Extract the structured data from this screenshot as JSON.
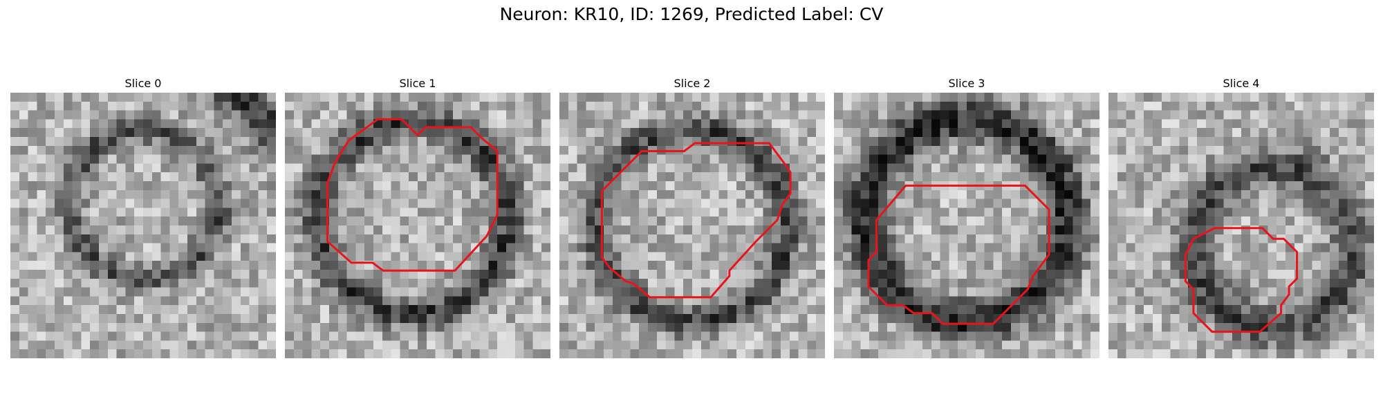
{
  "figure": {
    "title": "Neuron: KR10, ID: 1269, Predicted Label: CV",
    "contour_color": "#e8141a"
  },
  "slices": [
    {
      "title": "Slice 0",
      "contour": []
    },
    {
      "title": "Slice 1",
      "contour": [
        [
          0.35,
          0.1
        ],
        [
          0.44,
          0.1
        ],
        [
          0.5,
          0.16
        ],
        [
          0.53,
          0.13
        ],
        [
          0.7,
          0.13
        ],
        [
          0.74,
          0.17
        ],
        [
          0.8,
          0.22
        ],
        [
          0.8,
          0.46
        ],
        [
          0.76,
          0.54
        ],
        [
          0.64,
          0.67
        ],
        [
          0.37,
          0.67
        ],
        [
          0.33,
          0.64
        ],
        [
          0.25,
          0.64
        ],
        [
          0.16,
          0.56
        ],
        [
          0.16,
          0.34
        ],
        [
          0.19,
          0.26
        ],
        [
          0.24,
          0.18
        ]
      ]
    },
    {
      "title": "Slice 2",
      "contour": [
        [
          0.31,
          0.22
        ],
        [
          0.47,
          0.22
        ],
        [
          0.51,
          0.19
        ],
        [
          0.79,
          0.19
        ],
        [
          0.85,
          0.27
        ],
        [
          0.87,
          0.3
        ],
        [
          0.87,
          0.38
        ],
        [
          0.84,
          0.42
        ],
        [
          0.82,
          0.48
        ],
        [
          0.74,
          0.56
        ],
        [
          0.64,
          0.67
        ],
        [
          0.64,
          0.69
        ],
        [
          0.57,
          0.77
        ],
        [
          0.34,
          0.77
        ],
        [
          0.28,
          0.72
        ],
        [
          0.25,
          0.71
        ],
        [
          0.19,
          0.66
        ],
        [
          0.16,
          0.62
        ],
        [
          0.16,
          0.37
        ]
      ]
    },
    {
      "title": "Slice 3",
      "contour": [
        [
          0.27,
          0.35
        ],
        [
          0.72,
          0.35
        ],
        [
          0.81,
          0.44
        ],
        [
          0.81,
          0.61
        ],
        [
          0.75,
          0.69
        ],
        [
          0.73,
          0.74
        ],
        [
          0.6,
          0.87
        ],
        [
          0.41,
          0.87
        ],
        [
          0.37,
          0.83
        ],
        [
          0.3,
          0.83
        ],
        [
          0.26,
          0.8
        ],
        [
          0.2,
          0.8
        ],
        [
          0.13,
          0.73
        ],
        [
          0.13,
          0.63
        ],
        [
          0.16,
          0.6
        ],
        [
          0.16,
          0.48
        ]
      ]
    },
    {
      "title": "Slice 4",
      "contour": [
        [
          0.32,
          0.55
        ],
        [
          0.4,
          0.51
        ],
        [
          0.58,
          0.51
        ],
        [
          0.62,
          0.55
        ],
        [
          0.66,
          0.55
        ],
        [
          0.71,
          0.6
        ],
        [
          0.71,
          0.7
        ],
        [
          0.68,
          0.73
        ],
        [
          0.68,
          0.76
        ],
        [
          0.65,
          0.8
        ],
        [
          0.65,
          0.83
        ],
        [
          0.57,
          0.9
        ],
        [
          0.39,
          0.9
        ],
        [
          0.32,
          0.83
        ],
        [
          0.32,
          0.74
        ],
        [
          0.29,
          0.71
        ],
        [
          0.29,
          0.61
        ]
      ]
    }
  ]
}
